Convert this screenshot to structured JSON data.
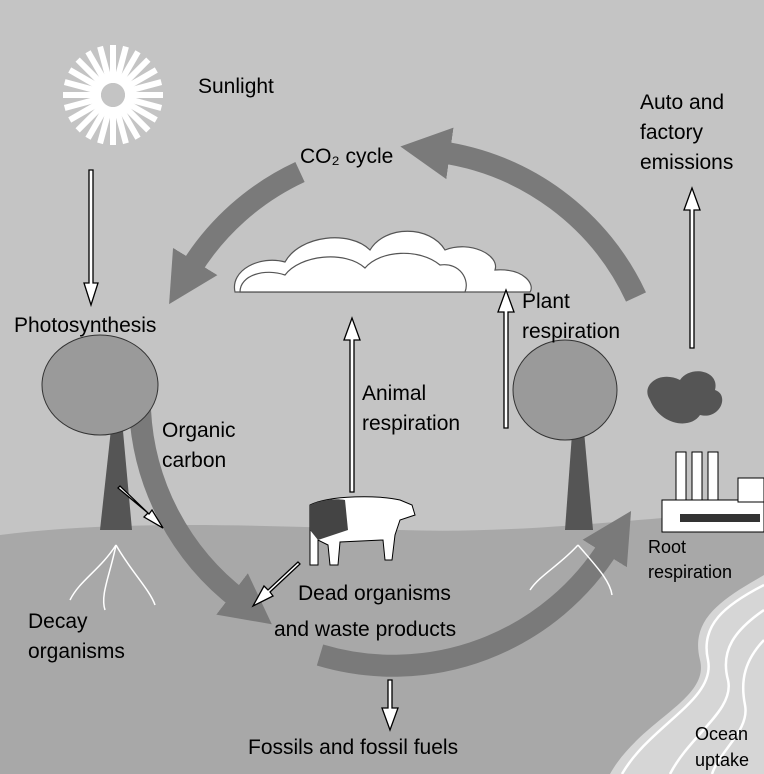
{
  "labels": {
    "sunlight": "Sunlight",
    "emissions": [
      "Auto and",
      "factory",
      "emissions"
    ],
    "co2_cycle": "CO₂ cycle",
    "photosynthesis": "Photosynthesis",
    "plant_respiration": [
      "Plant",
      "respiration"
    ],
    "animal_respiration": [
      "Animal",
      "respiration"
    ],
    "organic_carbon": [
      "Organic",
      "carbon"
    ],
    "root_respiration": [
      "Root",
      "respiration"
    ],
    "dead_organisms": [
      "Dead organisms",
      "and waste products"
    ],
    "decay_organisms": [
      "Decay",
      "organisms"
    ],
    "fossils": "Fossils and fossil fuels",
    "ocean_uptake": [
      "Ocean",
      "uptake"
    ]
  }
}
